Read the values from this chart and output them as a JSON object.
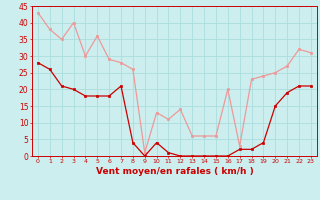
{
  "x": [
    0,
    1,
    2,
    3,
    4,
    5,
    6,
    7,
    8,
    9,
    10,
    11,
    12,
    13,
    14,
    15,
    16,
    17,
    18,
    19,
    20,
    21,
    22,
    23
  ],
  "wind_avg": [
    28,
    26,
    21,
    20,
    18,
    18,
    18,
    21,
    4,
    0,
    4,
    1,
    0,
    0,
    0,
    0,
    0,
    2,
    2,
    4,
    15,
    19,
    21,
    21
  ],
  "wind_gust": [
    43,
    38,
    35,
    40,
    30,
    36,
    29,
    28,
    26,
    1,
    13,
    11,
    14,
    6,
    6,
    6,
    20,
    3,
    23,
    24,
    25,
    27,
    32,
    31
  ],
  "bg_color": "#cceeee",
  "avg_color": "#cc0000",
  "gust_color": "#ee9999",
  "xlabel": "Vent moyen/en rafales ( km/h )",
  "ylim": [
    0,
    45
  ],
  "yticks": [
    0,
    5,
    10,
    15,
    20,
    25,
    30,
    35,
    40,
    45
  ],
  "xticks": [
    0,
    1,
    2,
    3,
    4,
    5,
    6,
    7,
    8,
    9,
    10,
    11,
    12,
    13,
    14,
    15,
    16,
    17,
    18,
    19,
    20,
    21,
    22,
    23
  ],
  "grid_color": "#aadddd",
  "tick_color": "#cc0000",
  "xlabel_color": "#cc0000"
}
